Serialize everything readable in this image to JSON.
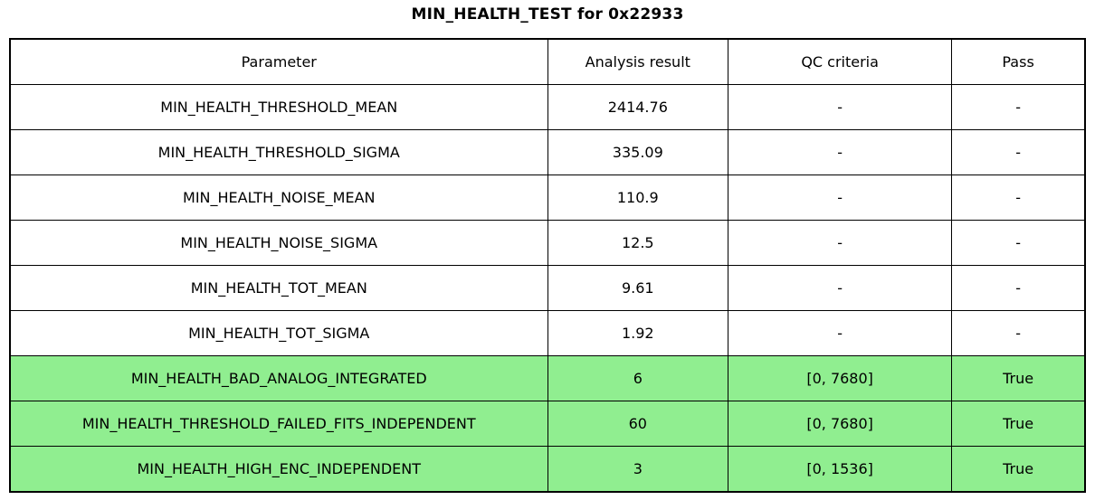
{
  "title": "MIN_HEALTH_TEST for 0x22933",
  "colors": {
    "background": "#ffffff",
    "border": "#000000",
    "text": "#000000",
    "pass_row_bg": "#90ee90"
  },
  "chart_data": {
    "type": "table",
    "title": "MIN_HEALTH_TEST for 0x22933",
    "columns": [
      "Parameter",
      "Analysis result",
      "QC criteria",
      "Pass"
    ],
    "rows": [
      {
        "parameter": "MIN_HEALTH_THRESHOLD_MEAN",
        "analysis_result": "2414.76",
        "qc_criteria": "-",
        "pass": "-",
        "highlighted": false
      },
      {
        "parameter": "MIN_HEALTH_THRESHOLD_SIGMA",
        "analysis_result": "335.09",
        "qc_criteria": "-",
        "pass": "-",
        "highlighted": false
      },
      {
        "parameter": "MIN_HEALTH_NOISE_MEAN",
        "analysis_result": "110.9",
        "qc_criteria": "-",
        "pass": "-",
        "highlighted": false
      },
      {
        "parameter": "MIN_HEALTH_NOISE_SIGMA",
        "analysis_result": "12.5",
        "qc_criteria": "-",
        "pass": "-",
        "highlighted": false
      },
      {
        "parameter": "MIN_HEALTH_TOT_MEAN",
        "analysis_result": "9.61",
        "qc_criteria": "-",
        "pass": "-",
        "highlighted": false
      },
      {
        "parameter": "MIN_HEALTH_TOT_SIGMA",
        "analysis_result": "1.92",
        "qc_criteria": "-",
        "pass": "-",
        "highlighted": false
      },
      {
        "parameter": "MIN_HEALTH_BAD_ANALOG_INTEGRATED",
        "analysis_result": "6",
        "qc_criteria": "[0, 7680]",
        "pass": "True",
        "highlighted": true
      },
      {
        "parameter": "MIN_HEALTH_THRESHOLD_FAILED_FITS_INDEPENDENT",
        "analysis_result": "60",
        "qc_criteria": "[0, 7680]",
        "pass": "True",
        "highlighted": true
      },
      {
        "parameter": "MIN_HEALTH_HIGH_ENC_INDEPENDENT",
        "analysis_result": "3",
        "qc_criteria": "[0, 1536]",
        "pass": "True",
        "highlighted": true
      }
    ]
  }
}
